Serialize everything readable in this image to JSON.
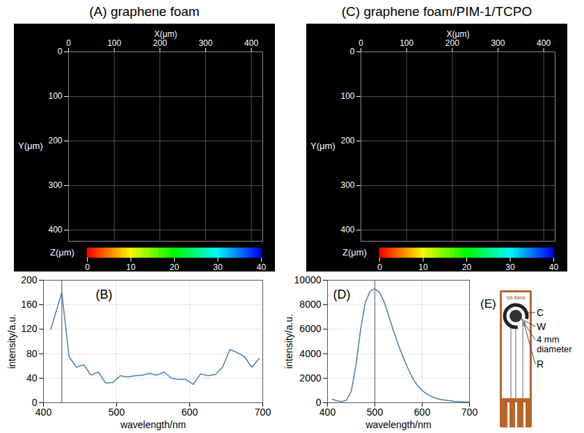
{
  "chart_data": [
    {
      "type": "image",
      "title": "(A) graphene foam",
      "x_label": "X(μm)",
      "y_label": "Y(μm)",
      "xlim": [
        0,
        425
      ],
      "xticks": [
        0,
        100,
        200,
        300,
        400
      ],
      "ylim": [
        0,
        425
      ],
      "yticks": [
        0,
        100,
        200,
        300,
        400
      ],
      "grid": true,
      "colorbar": {
        "label": "Z(μm)",
        "range": [
          0,
          40
        ],
        "ticks": [
          0,
          10,
          20,
          30,
          40
        ],
        "colors": [
          "#ff0000",
          "#ffff00",
          "#00ff00",
          "#00ffff",
          "#0000ff"
        ]
      }
    },
    {
      "type": "image",
      "title": "(C) graphene foam/PIM-1/TCPO",
      "x_label": "X(μm)",
      "y_label": "Y(μm)",
      "xlim": [
        0,
        425
      ],
      "xticks": [
        0,
        100,
        200,
        300,
        400
      ],
      "ylim": [
        0,
        425
      ],
      "yticks": [
        0,
        100,
        200,
        300,
        400
      ],
      "grid": true,
      "colorbar": {
        "label": "Z(μm)",
        "range": [
          0,
          40
        ],
        "ticks": [
          0,
          10,
          20,
          30,
          40
        ],
        "colors": [
          "#ff0000",
          "#ffff00",
          "#00ff00",
          "#00ffff",
          "#0000ff"
        ]
      }
    },
    {
      "type": "line",
      "title": "(B)",
      "x_label": "wavelength/nm",
      "y_label": "intensity/a.u.",
      "x": [
        410,
        425,
        435,
        445,
        455,
        465,
        475,
        485,
        495,
        505,
        515,
        525,
        535,
        545,
        555,
        565,
        575,
        585,
        595,
        605,
        615,
        625,
        635,
        645,
        655,
        665,
        675,
        685,
        695
      ],
      "values": [
        120,
        180,
        75,
        58,
        62,
        45,
        50,
        32,
        33,
        44,
        42,
        44,
        45,
        48,
        45,
        50,
        40,
        38,
        38,
        30,
        47,
        44,
        46,
        58,
        87,
        82,
        75,
        58,
        72
      ],
      "color": "#4a7fa5",
      "xlim": [
        400,
        700
      ],
      "xticks": [
        400,
        500,
        600,
        700
      ],
      "ylim": [
        0,
        200
      ],
      "yticks": [
        0,
        40,
        80,
        120,
        160,
        200
      ],
      "grid": true,
      "vertical_line": 425
    },
    {
      "type": "line",
      "title": "(D)",
      "x_label": "wavelength/nm",
      "y_label": "intensity/a.u.",
      "x": [
        410,
        420,
        430,
        440,
        450,
        460,
        470,
        480,
        490,
        500,
        510,
        520,
        530,
        540,
        550,
        560,
        570,
        580,
        590,
        600,
        610,
        620,
        630,
        640,
        650,
        660,
        670,
        680,
        690,
        700
      ],
      "values": [
        300,
        150,
        100,
        200,
        900,
        3000,
        6000,
        8200,
        9100,
        9300,
        9000,
        8200,
        7000,
        5800,
        4700,
        3700,
        2800,
        2000,
        1400,
        1000,
        700,
        500,
        350,
        250,
        200,
        150,
        100,
        80,
        60,
        50
      ],
      "color": "#4a7fa5",
      "xlim": [
        400,
        700
      ],
      "xticks": [
        400,
        500,
        600,
        700
      ],
      "ylim": [
        0,
        10000
      ],
      "yticks": [
        0,
        2000,
        4000,
        6000,
        8000,
        10000
      ],
      "grid": true,
      "vertical_line": 500
    },
    {
      "type": "photo",
      "title": "(E)",
      "printed_text": "Gii-Sens",
      "labels": [
        "C",
        "W",
        "4 mm diameter",
        "R"
      ]
    }
  ]
}
